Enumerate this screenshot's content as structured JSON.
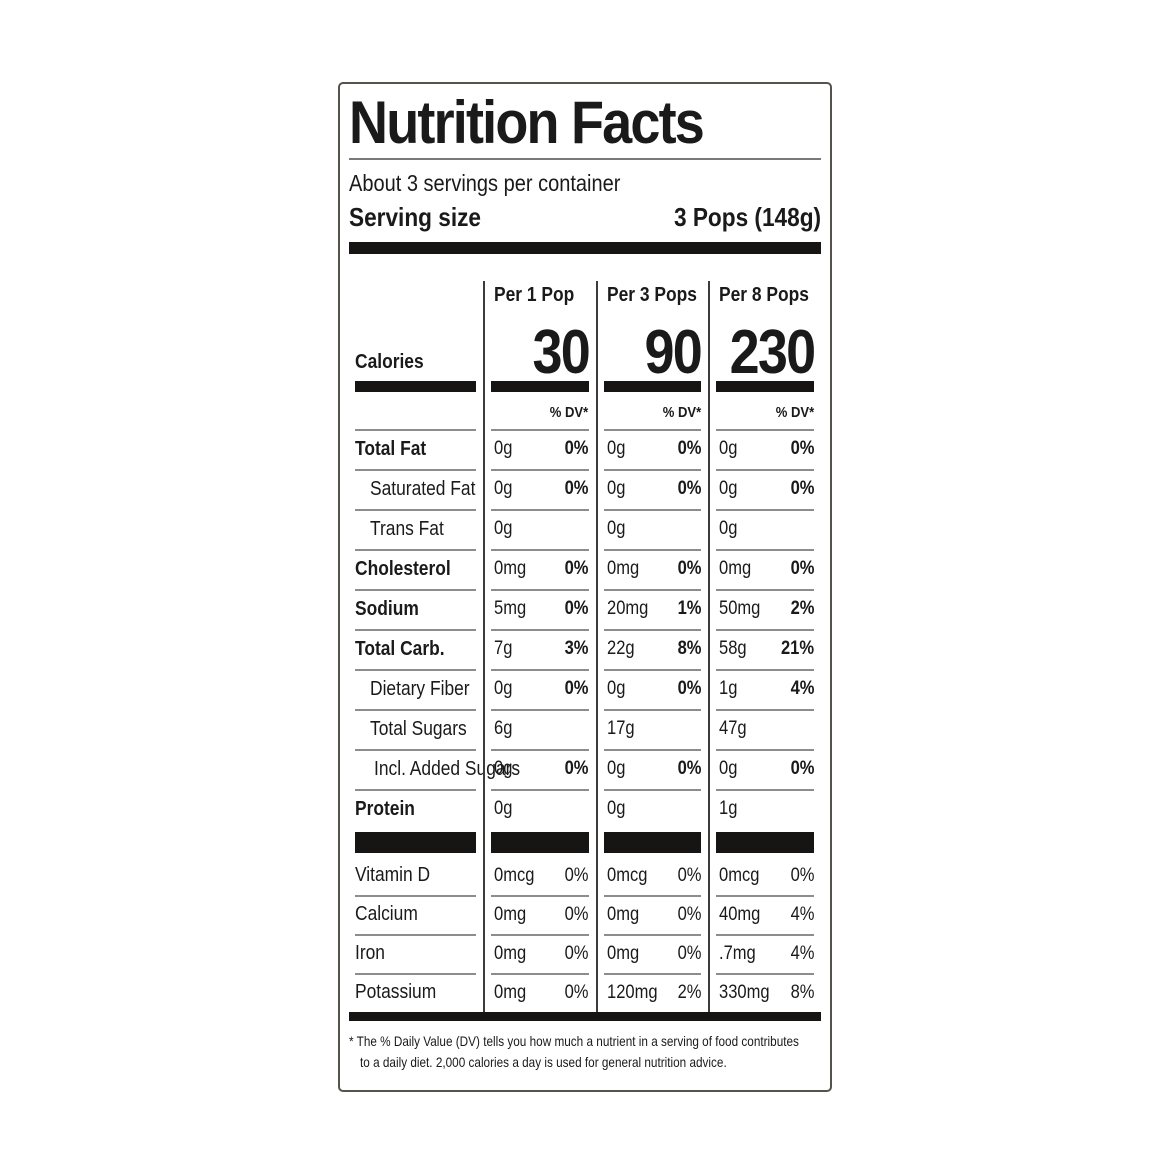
{
  "label": {
    "title": "Nutrition Facts",
    "servings_per_container": "About 3 servings per container",
    "serving_size": {
      "label": "Serving size",
      "value": "3 Pops (148g)"
    },
    "calories": {
      "label": "Calories",
      "dv_note": "% DV*"
    },
    "columns": [
      {
        "header": "Per 1 Pop",
        "calories": "30"
      },
      {
        "header": "Per 3 Pops",
        "calories": "90"
      },
      {
        "header": "Per 8 Pops",
        "calories": "230"
      }
    ],
    "nutrients": [
      {
        "name": "Total Fat",
        "style": "bold",
        "cells": [
          {
            "amount": "0g",
            "dv": "0%"
          },
          {
            "amount": "0g",
            "dv": "0%"
          },
          {
            "amount": "0g",
            "dv": "0%"
          }
        ]
      },
      {
        "name": "Saturated Fat",
        "style": "indent",
        "cells": [
          {
            "amount": "0g",
            "dv": "0%"
          },
          {
            "amount": "0g",
            "dv": "0%"
          },
          {
            "amount": "0g",
            "dv": "0%"
          }
        ]
      },
      {
        "name": "Trans Fat",
        "style": "indent",
        "cells": [
          {
            "amount": "0g",
            "dv": ""
          },
          {
            "amount": "0g",
            "dv": ""
          },
          {
            "amount": "0g",
            "dv": ""
          }
        ]
      },
      {
        "name": "Cholesterol",
        "style": "bold",
        "cells": [
          {
            "amount": "0mg",
            "dv": "0%"
          },
          {
            "amount": "0mg",
            "dv": "0%"
          },
          {
            "amount": "0mg",
            "dv": "0%"
          }
        ]
      },
      {
        "name": "Sodium",
        "style": "bold",
        "cells": [
          {
            "amount": "5mg",
            "dv": "0%"
          },
          {
            "amount": "20mg",
            "dv": "1%"
          },
          {
            "amount": "50mg",
            "dv": "2%"
          }
        ]
      },
      {
        "name": "Total Carb.",
        "style": "bold",
        "cells": [
          {
            "amount": "7g",
            "dv": "3%"
          },
          {
            "amount": "22g",
            "dv": "8%"
          },
          {
            "amount": "58g",
            "dv": "21%"
          }
        ]
      },
      {
        "name": "Dietary Fiber",
        "style": "indent",
        "cells": [
          {
            "amount": "0g",
            "dv": "0%"
          },
          {
            "amount": "0g",
            "dv": "0%"
          },
          {
            "amount": "1g",
            "dv": "4%"
          }
        ]
      },
      {
        "name": "Total Sugars",
        "style": "indent",
        "cells": [
          {
            "amount": "6g",
            "dv": ""
          },
          {
            "amount": "17g",
            "dv": ""
          },
          {
            "amount": "47g",
            "dv": ""
          }
        ]
      },
      {
        "name": "Incl. Added Sugars",
        "style": "indent2",
        "cells": [
          {
            "amount": "0g",
            "dv": "0%"
          },
          {
            "amount": "0g",
            "dv": "0%"
          },
          {
            "amount": "0g",
            "dv": "0%"
          }
        ]
      },
      {
        "name": "Protein",
        "style": "bold",
        "cells": [
          {
            "amount": "0g",
            "dv": ""
          },
          {
            "amount": "0g",
            "dv": ""
          },
          {
            "amount": "1g",
            "dv": ""
          }
        ]
      }
    ],
    "vitamins": [
      {
        "name": "Vitamin D",
        "cells": [
          {
            "amount": "0mcg",
            "dv": "0%"
          },
          {
            "amount": "0mcg",
            "dv": "0%"
          },
          {
            "amount": "0mcg",
            "dv": "0%"
          }
        ]
      },
      {
        "name": "Calcium",
        "cells": [
          {
            "amount": "0mg",
            "dv": "0%"
          },
          {
            "amount": "0mg",
            "dv": "0%"
          },
          {
            "amount": "40mg",
            "dv": "4%"
          }
        ]
      },
      {
        "name": "Iron",
        "cells": [
          {
            "amount": "0mg",
            "dv": "0%"
          },
          {
            "amount": "0mg",
            "dv": "0%"
          },
          {
            "amount": ".7mg",
            "dv": "4%"
          }
        ]
      },
      {
        "name": "Potassium",
        "cells": [
          {
            "amount": "0mg",
            "dv": "0%"
          },
          {
            "amount": "120mg",
            "dv": "2%"
          },
          {
            "amount": "330mg",
            "dv": "8%"
          }
        ]
      }
    ],
    "footnote": {
      "line1": "* The % Daily Value (DV) tells you how much a nutrient in a serving of food contributes",
      "line2": "to a daily diet. 2,000 calories a day is used for general nutrition advice."
    },
    "colors": {
      "text": "#1a1a1a",
      "separator": "#8f8d8a",
      "divider": "#3e3c39",
      "thick_bar": "#161514",
      "border": "#56534f"
    }
  }
}
